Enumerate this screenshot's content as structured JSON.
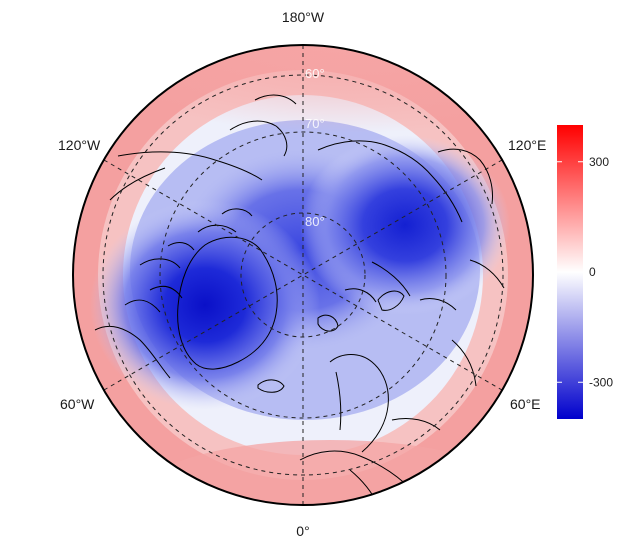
{
  "map": {
    "projection": "north-polar-stereographic",
    "longitude_labels": {
      "top": "180°W",
      "bottom": "0°",
      "upper_left": "120°W",
      "lower_left": "60°W",
      "upper_right": "120°E",
      "lower_right": "60°E"
    },
    "latitude_labels": [
      "60°",
      "70°",
      "80°"
    ],
    "field": {
      "description_type": "geopotential anomaly field",
      "range": [
        -400,
        400
      ],
      "pattern": "strong negative center over Greenland and a second negative center over northern Siberia; positive ring over mid latitudes"
    }
  },
  "colorbar": {
    "colors": {
      "low": "#0000cc",
      "mid": "#ffffff",
      "high": "#ff0000"
    },
    "min": -400,
    "max": 400,
    "ticks": [
      {
        "value": 300,
        "label": "300"
      },
      {
        "value": 0,
        "label": "0"
      },
      {
        "value": -300,
        "label": "-300"
      }
    ]
  }
}
